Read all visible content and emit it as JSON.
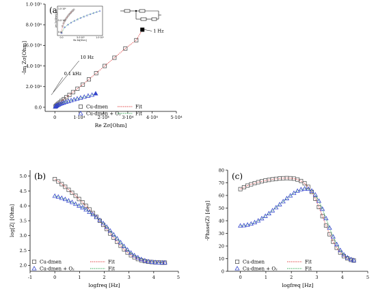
{
  "chart_data": [
    {
      "type": "scatter",
      "panel_label": "(a)",
      "xlabel": "Re Zσ[Ohm]",
      "ylabel": "-Im Zσ[Ohm]",
      "xlim": [
        -4000,
        50000
      ],
      "ylim": [
        -4000,
        100000
      ],
      "xticks": [
        0,
        10000,
        20000,
        30000,
        40000,
        50000
      ],
      "xtick_labels": [
        "0",
        "1·10⁴",
        "2·10⁴",
        "3·10⁴",
        "4·10⁴",
        "5·10⁴"
      ],
      "yticks": [
        0,
        20000,
        40000,
        60000,
        80000,
        100000
      ],
      "ytick_labels": [
        "0.0",
        "2.0·10⁴",
        "4.0·10⁴",
        "6.0·10⁴",
        "8.0·10⁴",
        "1.0·10⁵"
      ],
      "annotations": [
        {
          "text": "1 Hz",
          "x": 36000,
          "y": 75200
        },
        {
          "text": "10 Hz",
          "x": 10500,
          "y": 47000
        },
        {
          "text": "0.1 kHz",
          "x": 3800,
          "y": 31000
        }
      ],
      "series": [
        {
          "name": "Cu-dmen",
          "marker": "square",
          "color": "#555555",
          "fit_color": "#e04040",
          "x": [
            300,
            600,
            1000,
            1500,
            2100,
            2800,
            3700,
            4700,
            6000,
            7500,
            9300,
            11500,
            14000,
            17000,
            20500,
            24500,
            29000,
            33500
          ],
          "y": [
            800,
            1600,
            2500,
            3600,
            4800,
            6200,
            7800,
            9700,
            12000,
            14700,
            18000,
            22000,
            27000,
            33000,
            40000,
            48000,
            57000,
            65000
          ],
          "highlight": {
            "x": 36000,
            "y": 75200
          }
        },
        {
          "name": "Cu-dmen + O₂",
          "marker": "triangle",
          "color": "#3344cc",
          "fit_color": "#33aa55",
          "x": [
            200,
            400,
            700,
            1100,
            1600,
            2200,
            2900,
            3700,
            4600,
            5600,
            6700,
            7900,
            9200,
            10600,
            12100,
            13700,
            15300
          ],
          "y": [
            500,
            900,
            1400,
            1900,
            2500,
            3100,
            3700,
            4400,
            5100,
            5800,
            6600,
            7400,
            8200,
            9100,
            10000,
            11000,
            11900
          ],
          "highlight": {
            "x": 16800,
            "y": 13200
          }
        }
      ],
      "inset": {
        "xlabel": "Re Zσ[Ohm]",
        "ylabel": "-Im Zσ[Ohm]",
        "xtick_labels": [
          "0.0",
          "5.0·10³",
          "1.0·10⁴"
        ],
        "ytick_labels": [
          "1.0·10⁴",
          "5.0·10³",
          "0.0"
        ]
      }
    },
    {
      "type": "scatter",
      "panel_label": "(b)",
      "xlabel": "logfreq [Hz]",
      "ylabel": "log|Z| [Ohm]",
      "xlim": [
        -1,
        5
      ],
      "ylim": [
        1.8,
        5.2
      ],
      "xticks": [
        -1,
        0,
        1,
        2,
        3,
        4,
        5
      ],
      "yticks": [
        2.0,
        2.5,
        3.0,
        3.5,
        4.0,
        4.5,
        5.0
      ],
      "series": [
        {
          "name": "Cu-dmen",
          "marker": "square",
          "color": "#555555",
          "fit_color": "#e04040",
          "x": [
            0,
            0.14,
            0.28,
            0.42,
            0.56,
            0.7,
            0.84,
            0.98,
            1.12,
            1.26,
            1.4,
            1.54,
            1.68,
            1.82,
            1.96,
            2.1,
            2.24,
            2.38,
            2.52,
            2.66,
            2.8,
            2.94,
            3.08,
            3.22,
            3.36,
            3.5,
            3.64,
            3.78,
            3.92,
            4.06,
            4.2,
            4.34,
            4.45
          ],
          "y": [
            4.9,
            4.82,
            4.73,
            4.64,
            4.54,
            4.44,
            4.34,
            4.23,
            4.12,
            4.0,
            3.88,
            3.76,
            3.63,
            3.5,
            3.36,
            3.22,
            3.07,
            2.93,
            2.79,
            2.66,
            2.54,
            2.43,
            2.34,
            2.27,
            2.21,
            2.17,
            2.14,
            2.12,
            2.11,
            2.1,
            2.1,
            2.09,
            2.09
          ]
        },
        {
          "name": "Cu-dmen + O₂",
          "marker": "triangle",
          "color": "#3344cc",
          "fit_color": "#33aa55",
          "x": [
            0,
            0.14,
            0.28,
            0.42,
            0.56,
            0.7,
            0.84,
            0.98,
            1.12,
            1.26,
            1.4,
            1.54,
            1.68,
            1.82,
            1.96,
            2.1,
            2.24,
            2.38,
            2.52,
            2.66,
            2.8,
            2.94,
            3.08,
            3.22,
            3.36,
            3.5,
            3.64,
            3.78,
            3.92,
            4.06,
            4.2,
            4.34,
            4.45
          ],
          "y": [
            4.33,
            4.3,
            4.26,
            4.22,
            4.17,
            4.12,
            4.06,
            4.0,
            3.94,
            3.87,
            3.79,
            3.71,
            3.62,
            3.52,
            3.41,
            3.29,
            3.16,
            3.03,
            2.9,
            2.77,
            2.64,
            2.52,
            2.42,
            2.33,
            2.26,
            2.2,
            2.16,
            2.13,
            2.11,
            2.1,
            2.09,
            2.09,
            2.09
          ]
        }
      ]
    },
    {
      "type": "scatter",
      "panel_label": "(c)",
      "xlabel": "logfreq [Hz]",
      "ylabel": "-Phase(Z) [deg]",
      "xlim": [
        -0.5,
        5
      ],
      "ylim": [
        0,
        80
      ],
      "xticks": [
        0,
        1,
        2,
        3,
        4,
        5
      ],
      "yticks": [
        0,
        10,
        20,
        30,
        40,
        50,
        60,
        70,
        80
      ],
      "series": [
        {
          "name": "Cu-dmen",
          "marker": "square",
          "color": "#555555",
          "fit_color": "#e04040",
          "x": [
            0,
            0.14,
            0.28,
            0.42,
            0.56,
            0.7,
            0.84,
            0.98,
            1.12,
            1.26,
            1.4,
            1.54,
            1.68,
            1.82,
            1.96,
            2.1,
            2.24,
            2.38,
            2.52,
            2.66,
            2.8,
            2.94,
            3.08,
            3.22,
            3.36,
            3.5,
            3.64,
            3.78,
            3.92,
            4.06,
            4.2,
            4.34,
            4.45
          ],
          "y": [
            65,
            66.5,
            67.8,
            68.8,
            69.7,
            70.5,
            71.2,
            71.8,
            72.3,
            72.8,
            73.1,
            73.4,
            73.6,
            73.7,
            73.6,
            73.3,
            72.6,
            71.4,
            69.6,
            66.8,
            62.8,
            57.4,
            50.8,
            43.6,
            36.2,
            29.3,
            23.4,
            18.6,
            14.8,
            12.0,
            10.2,
            9.0,
            8.5
          ]
        },
        {
          "name": "Cu-dmen + O₂",
          "marker": "triangle",
          "color": "#3344cc",
          "fit_color": "#33aa55",
          "x": [
            0,
            0.14,
            0.28,
            0.42,
            0.56,
            0.7,
            0.84,
            0.98,
            1.12,
            1.26,
            1.4,
            1.54,
            1.68,
            1.82,
            1.96,
            2.1,
            2.24,
            2.38,
            2.52,
            2.66,
            2.8,
            2.94,
            3.08,
            3.22,
            3.36,
            3.5,
            3.64,
            3.78,
            3.92,
            4.06,
            4.2,
            4.34,
            4.45
          ],
          "y": [
            36,
            36.2,
            36.7,
            37.5,
            38.6,
            40.0,
            41.7,
            43.6,
            45.7,
            48.0,
            50.4,
            52.8,
            55.2,
            57.6,
            59.8,
            61.8,
            63.5,
            64.7,
            65.3,
            65.1,
            63.6,
            60.5,
            55.6,
            49.2,
            41.8,
            34.3,
            27.3,
            21.3,
            16.6,
            13.1,
            10.8,
            9.4,
            8.6
          ]
        }
      ]
    }
  ],
  "legend": {
    "series1": "Cu-dmen",
    "series2": "Cu-dmen + O₂",
    "fit": "Fit"
  }
}
